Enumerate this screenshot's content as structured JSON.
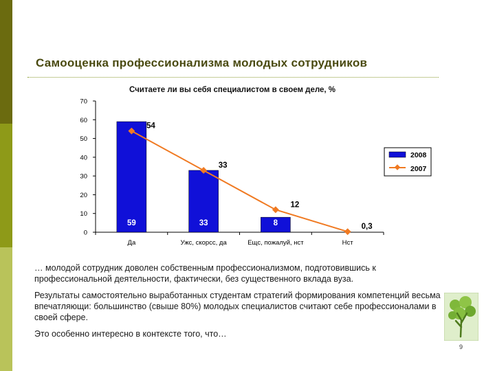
{
  "slide": {
    "title": "Самооценка профессионализма молодых сотрудников",
    "page_number": "9",
    "paragraphs": [
      "… молодой сотрудник доволен собственным профессионализмом, подготовившись к профессиональной деятельности, фактически, без существенного вклада вуза.",
      "Результаты самостоятельно выработанных студентам стратегий формирования компетенций весьма впечатляющи: большинство  (свыше 80%) молодых специалистов считают себе профессионалами в своей сфере.",
      "Это особенно интересно в контексте того, что…"
    ],
    "colors": {
      "band_top": "#6b6b0f",
      "band_mid": "#8e9a18",
      "band_bottom": "#b9c35a",
      "title": "#4a4a10"
    },
    "decor_icon": "tree-icon"
  },
  "chart_data": {
    "type": "bar",
    "title": "Считаете ли вы себя специалистом в своем деле, %",
    "categories": [
      "Да",
      "Ужс, скорсс, да",
      "Ещс, пожалуй, нст",
      "Нст"
    ],
    "series": [
      {
        "name": "2008",
        "type": "bar",
        "color": "#1010d8",
        "values": [
          59,
          33,
          8,
          null
        ],
        "labels": [
          "59",
          "33",
          "8",
          ""
        ]
      },
      {
        "name": "2007",
        "type": "line",
        "color": "#f07a22",
        "values": [
          54,
          33,
          12,
          0.3
        ],
        "labels": [
          "54",
          "33",
          "12",
          "0,3"
        ]
      }
    ],
    "ylim": [
      0,
      70
    ],
    "yticks": [
      "0",
      "10",
      "20",
      "30",
      "40",
      "50",
      "60",
      "70"
    ],
    "grid": false,
    "legend": "right"
  }
}
